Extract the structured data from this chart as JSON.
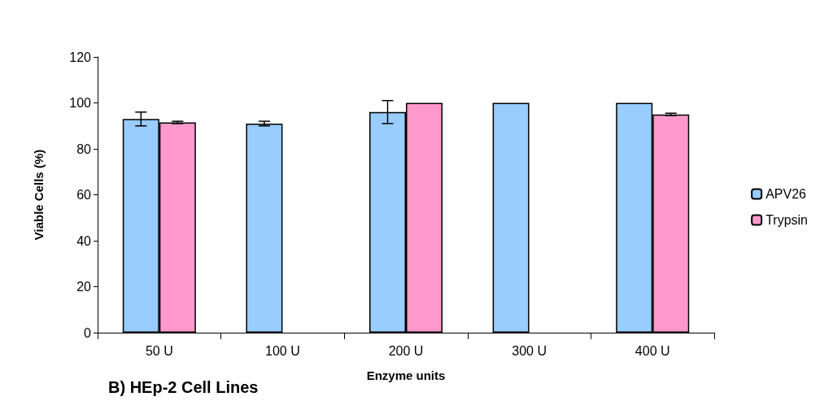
{
  "chart_data": {
    "type": "bar",
    "title": "B) HEp-2 Cell Lines",
    "xlabel": "Enzyme units",
    "ylabel": "Viable Cells (%)",
    "categories": [
      "50 U",
      "100 U",
      "200 U",
      "300 U",
      "400 U"
    ],
    "series": [
      {
        "name": "APV26",
        "color": "#99ccff",
        "values": [
          93,
          91,
          96,
          100,
          100
        ],
        "errors": [
          3,
          1,
          5,
          null,
          null
        ]
      },
      {
        "name": "Trypsin",
        "color": "#ff99cc",
        "values": [
          91.5,
          null,
          100,
          null,
          95
        ],
        "errors": [
          0.5,
          null,
          null,
          null,
          0.5
        ]
      }
    ],
    "ylim": [
      0,
      120
    ],
    "yticks": [
      0,
      20,
      40,
      60,
      80,
      100,
      120
    ],
    "grid": false,
    "legend": "right"
  }
}
